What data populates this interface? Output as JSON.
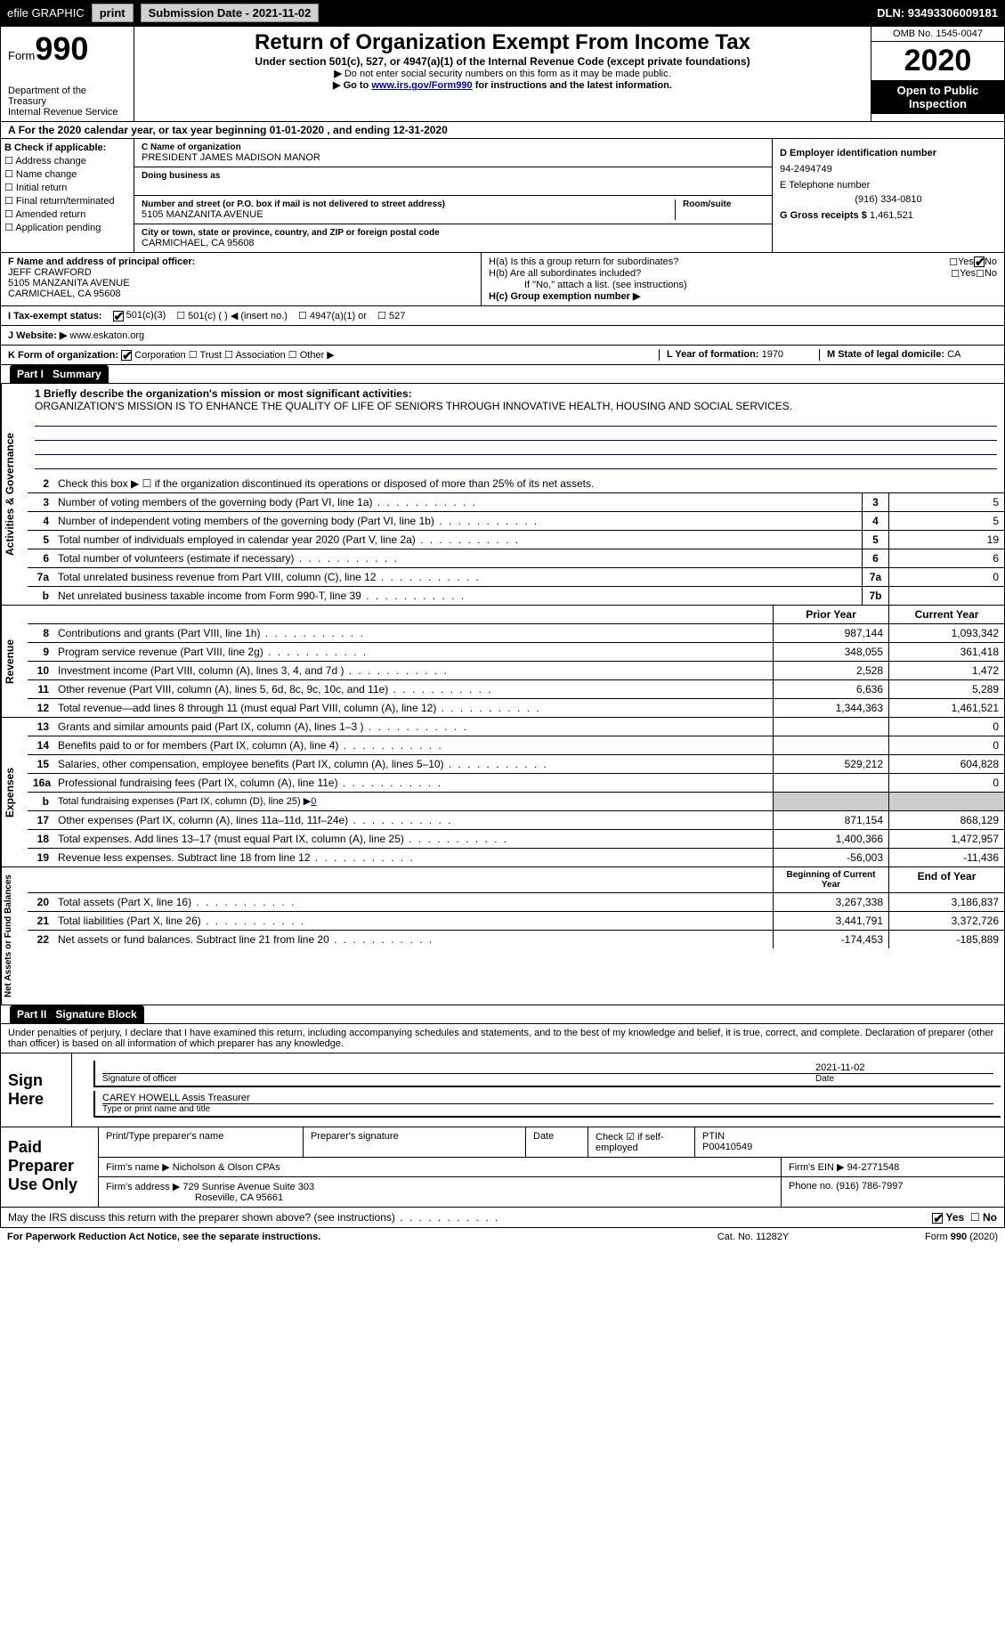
{
  "topbar": {
    "efile": "efile GRAPHIC",
    "print": "print",
    "submission": "Submission Date - 2021-11-02",
    "dln": "DLN: 93493306009181"
  },
  "form": {
    "form_label": "Form",
    "form_num": "990",
    "title": "Return of Organization Exempt From Income Tax",
    "subtitle": "Under section 501(c), 527, or 4947(a)(1) of the Internal Revenue Code (except private foundations)",
    "note1": "Do not enter social security numbers on this form as it may be made public.",
    "note2_a": "Go to ",
    "note2_link": "www.irs.gov/Form990",
    "note2_b": " for instructions and the latest information.",
    "dept": "Department of the Treasury",
    "irs": "Internal Revenue Service",
    "omb": "OMB No. 1545-0047",
    "year": "2020",
    "inspect": "Open to Public Inspection"
  },
  "lineA": "For the 2020 calendar year, or tax year beginning 01-01-2020    , and ending 12-31-2020",
  "B": {
    "hdr": "B Check if applicable:",
    "opts": [
      "Address change",
      "Name change",
      "Initial return",
      "Final return/terminated",
      "Amended return",
      "Application pending"
    ]
  },
  "C": {
    "name_label": "C Name of organization",
    "name": "PRESIDENT JAMES MADISON MANOR",
    "dba_label": "Doing business as",
    "addr_label": "Number and street (or P.O. box if mail is not delivered to street address)",
    "room_label": "Room/suite",
    "addr": "5105 MANZANITA AVENUE",
    "city_label": "City or town, state or province, country, and ZIP or foreign postal code",
    "city": "CARMICHAEL, CA  95608"
  },
  "D": {
    "label": "D Employer identification number",
    "val": "94-2494749"
  },
  "E": {
    "label": "E Telephone number",
    "val": "(916) 334-0810"
  },
  "G": {
    "label": "G Gross receipts $",
    "val": "1,461,521"
  },
  "F": {
    "label": "F  Name and address of principal officer:",
    "name": "JEFF CRAWFORD",
    "addr1": "5105 MANZANITA AVENUE",
    "addr2": "CARMICHAEL, CA  95608"
  },
  "H": {
    "a": "H(a)  Is this a group return for subordinates?",
    "b": "H(b)  Are all subordinates included?",
    "note": "If \"No,\" attach a list. (see instructions)",
    "c": "H(c)  Group exemption number ▶",
    "yes": "Yes",
    "no": "No"
  },
  "I": {
    "label": "I   Tax-exempt status:",
    "o1": "501(c)(3)",
    "o2": "501(c) (  ) ◀ (insert no.)",
    "o3": "4947(a)(1) or",
    "o4": "527"
  },
  "J": {
    "label": "J   Website: ▶",
    "val": "www.eskaton.org"
  },
  "K": {
    "label": "K Form of organization:",
    "o1": "Corporation",
    "o2": "Trust",
    "o3": "Association",
    "o4": "Other ▶"
  },
  "L": {
    "label": "L Year of formation:",
    "val": "1970"
  },
  "M": {
    "label": "M State of legal domicile:",
    "val": "CA"
  },
  "part1": {
    "hdr": "Part I",
    "title": "Summary"
  },
  "gov": {
    "label": "Activities & Governance",
    "l1a": "1  Briefly describe the organization's mission or most significant activities:",
    "l1b": "ORGANIZATION'S MISSION IS TO ENHANCE THE QUALITY OF LIFE OF SENIORS THROUGH INNOVATIVE HEALTH, HOUSING AND SOCIAL SERVICES.",
    "l2": "Check this box ▶ ☐  if the organization discontinued its operations or disposed of more than 25% of its net assets.",
    "rows": [
      {
        "n": "3",
        "t": "Number of voting members of the governing body (Part VI, line 1a)",
        "b": "3",
        "v": "5"
      },
      {
        "n": "4",
        "t": "Number of independent voting members of the governing body (Part VI, line 1b)",
        "b": "4",
        "v": "5"
      },
      {
        "n": "5",
        "t": "Total number of individuals employed in calendar year 2020 (Part V, line 2a)",
        "b": "5",
        "v": "19"
      },
      {
        "n": "6",
        "t": "Total number of volunteers (estimate if necessary)",
        "b": "6",
        "v": "6"
      },
      {
        "n": "7a",
        "t": "Total unrelated business revenue from Part VIII, column (C), line 12",
        "b": "7a",
        "v": "0"
      },
      {
        "n": "b",
        "t": "Net unrelated business taxable income from Form 990-T, line 39",
        "b": "7b",
        "v": ""
      }
    ]
  },
  "colhdr": {
    "prior": "Prior Year",
    "curr": "Current Year",
    "boy": "Beginning of Current Year",
    "eoy": "End of Year"
  },
  "rev": {
    "label": "Revenue",
    "rows": [
      {
        "n": "8",
        "t": "Contributions and grants (Part VIII, line 1h)",
        "p": "987,144",
        "c": "1,093,342"
      },
      {
        "n": "9",
        "t": "Program service revenue (Part VIII, line 2g)",
        "p": "348,055",
        "c": "361,418"
      },
      {
        "n": "10",
        "t": "Investment income (Part VIII, column (A), lines 3, 4, and 7d )",
        "p": "2,528",
        "c": "1,472"
      },
      {
        "n": "11",
        "t": "Other revenue (Part VIII, column (A), lines 5, 6d, 8c, 9c, 10c, and 11e)",
        "p": "6,636",
        "c": "5,289"
      },
      {
        "n": "12",
        "t": "Total revenue—add lines 8 through 11 (must equal Part VIII, column (A), line 12)",
        "p": "1,344,363",
        "c": "1,461,521"
      }
    ]
  },
  "exp": {
    "label": "Expenses",
    "rows": [
      {
        "n": "13",
        "t": "Grants and similar amounts paid (Part IX, column (A), lines 1–3 )",
        "p": "",
        "c": "0"
      },
      {
        "n": "14",
        "t": "Benefits paid to or for members (Part IX, column (A), line 4)",
        "p": "",
        "c": "0"
      },
      {
        "n": "15",
        "t": "Salaries, other compensation, employee benefits (Part IX, column (A), lines 5–10)",
        "p": "529,212",
        "c": "604,828"
      },
      {
        "n": "16a",
        "t": "Professional fundraising fees (Part IX, column (A), line 11e)",
        "p": "",
        "c": "0"
      },
      {
        "n": "b",
        "t": "Total fundraising expenses (Part IX, column (D), line 25) ▶",
        "val": "0",
        "shade": true
      },
      {
        "n": "17",
        "t": "Other expenses (Part IX, column (A), lines 11a–11d, 11f–24e)",
        "p": "871,154",
        "c": "868,129"
      },
      {
        "n": "18",
        "t": "Total expenses. Add lines 13–17 (must equal Part IX, column (A), line 25)",
        "p": "1,400,366",
        "c": "1,472,957"
      },
      {
        "n": "19",
        "t": "Revenue less expenses. Subtract line 18 from line 12",
        "p": "-56,003",
        "c": "-11,436"
      }
    ]
  },
  "net": {
    "label": "Net Assets or Fund Balances",
    "rows": [
      {
        "n": "20",
        "t": "Total assets (Part X, line 16)",
        "p": "3,267,338",
        "c": "3,186,837"
      },
      {
        "n": "21",
        "t": "Total liabilities (Part X, line 26)",
        "p": "3,441,791",
        "c": "3,372,726"
      },
      {
        "n": "22",
        "t": "Net assets or fund balances. Subtract line 21 from line 20",
        "p": "-174,453",
        "c": "-185,889"
      }
    ]
  },
  "part2": {
    "hdr": "Part II",
    "title": "Signature Block",
    "decl": "Under penalties of perjury, I declare that I have examined this return, including accompanying schedules and statements, and to the best of my knowledge and belief, it is true, correct, and complete. Declaration of preparer (other than officer) is based on all information of which preparer has any knowledge."
  },
  "sign": {
    "label": "Sign Here",
    "sig": "Signature of officer",
    "date": "Date",
    "date_val": "2021-11-02",
    "name": "CAREY HOWELL  Assis Treasurer",
    "name_lbl": "Type or print name and title"
  },
  "prep": {
    "label": "Paid Preparer Use Only",
    "r1": {
      "a": "Print/Type preparer's name",
      "b": "Preparer's signature",
      "c": "Date",
      "d": "Check ☑ if self-employed",
      "e": "PTIN",
      "e_val": "P00410549"
    },
    "r2": {
      "a": "Firm's name    ▶",
      "a_val": "Nicholson & Olson CPAs",
      "b": "Firm's EIN ▶",
      "b_val": "94-2771548"
    },
    "r3": {
      "a": "Firm's address ▶",
      "a_val": "729 Sunrise Avenue Suite 303",
      "a_val2": "Roseville, CA  95661",
      "b": "Phone no.",
      "b_val": "(916) 786-7997"
    }
  },
  "discuss": {
    "q": "May the IRS discuss this return with the preparer shown above? (see instructions)",
    "yes": "Yes",
    "no": "No"
  },
  "footer": {
    "a": "For Paperwork Reduction Act Notice, see the separate instructions.",
    "b": "Cat. No. 11282Y",
    "c": "Form 990 (2020)"
  }
}
